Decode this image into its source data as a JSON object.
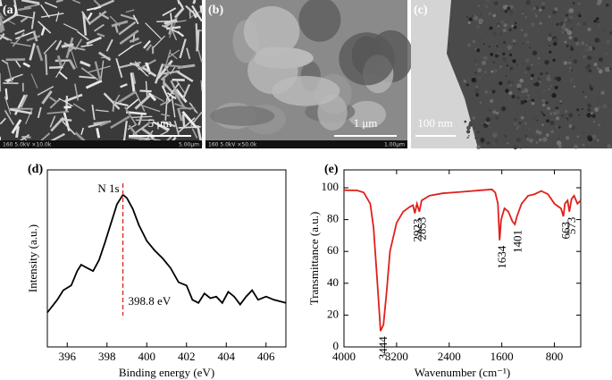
{
  "panels": [
    {
      "label": "(a)",
      "scale_bar": "5 μm",
      "footer_left": "160 5.0kV ×10.0k",
      "footer_right": "5.00μm"
    },
    {
      "label": "(b)",
      "scale_bar": "1 μm",
      "footer_left": "160 5.0kV ×50.0k",
      "footer_right": "1.00μm"
    },
    {
      "label": "(c)",
      "scale_bar": "100 nm"
    }
  ],
  "chart_data": [
    {
      "type": "line",
      "panel_label": "(d)",
      "xlabel": "Binding energy (eV)",
      "ylabel": "Intensity (a.u.)",
      "peak_name": "N 1s",
      "annotations": [
        {
          "value": 398.8,
          "label": "398.8 eV"
        }
      ],
      "xlim": [
        395,
        407
      ],
      "xticks": [
        396,
        398,
        400,
        402,
        404,
        406
      ],
      "ylim": [
        0,
        100
      ],
      "color": "#000000",
      "x": [
        395.0,
        395.5,
        395.8,
        396.2,
        396.5,
        396.7,
        397.0,
        397.3,
        397.6,
        397.9,
        398.2,
        398.5,
        398.8,
        399.0,
        399.3,
        399.6,
        400.0,
        400.4,
        400.8,
        401.2,
        401.6,
        402.0,
        402.3,
        402.6,
        402.9,
        403.2,
        403.5,
        403.8,
        404.1,
        404.4,
        404.7,
        405.0,
        405.3,
        405.6,
        406.0,
        406.4,
        407.0
      ],
      "values": [
        16,
        24,
        30,
        33,
        42,
        46,
        44,
        42,
        49,
        60,
        72,
        84,
        90,
        88,
        81,
        71,
        61,
        55,
        50,
        44,
        35,
        33,
        24,
        22,
        28,
        25,
        26,
        22,
        29,
        26,
        21,
        26,
        30,
        24,
        26,
        24,
        22
      ]
    },
    {
      "type": "line",
      "panel_label": "(e)",
      "xlabel": "Wavenumber (cm⁻¹)",
      "ylabel": "Transmittance (a.u.)",
      "annotations": [
        {
          "value": 3444,
          "label": "3444"
        },
        {
          "value": 2923,
          "label": "2923"
        },
        {
          "value": 2853,
          "label": "2853"
        },
        {
          "value": 1634,
          "label": "1634"
        },
        {
          "value": 1401,
          "label": "1401"
        },
        {
          "value": 663,
          "label": "663"
        },
        {
          "value": 573,
          "label": "573"
        }
      ],
      "xlim": [
        4000,
        400
      ],
      "xticks": [
        4000,
        3200,
        2400,
        1600,
        800
      ],
      "ylim": [
        0,
        100
      ],
      "yticks": [
        0,
        20,
        40,
        60,
        80,
        100
      ],
      "color": "#e0201b",
      "x": [
        4000,
        3800,
        3700,
        3600,
        3550,
        3500,
        3460,
        3444,
        3400,
        3350,
        3300,
        3200,
        3100,
        3000,
        2950,
        2923,
        2890,
        2853,
        2820,
        2700,
        2500,
        2200,
        1900,
        1750,
        1700,
        1660,
        1634,
        1610,
        1560,
        1500,
        1440,
        1401,
        1370,
        1300,
        1200,
        1100,
        1000,
        900,
        800,
        700,
        663,
        640,
        600,
        573,
        540,
        500,
        450,
        400
      ],
      "values": [
        98.5,
        98.3,
        97,
        90,
        75,
        45,
        20,
        10,
        14,
        35,
        60,
        78,
        85,
        88,
        89,
        84,
        90,
        85,
        92,
        95,
        96.5,
        97.5,
        98.5,
        99,
        97,
        90,
        67,
        80,
        87,
        85,
        79,
        77,
        82,
        90,
        95,
        96,
        98,
        96,
        90,
        87,
        82,
        90,
        92,
        85,
        93,
        95,
        90,
        92
      ]
    }
  ]
}
